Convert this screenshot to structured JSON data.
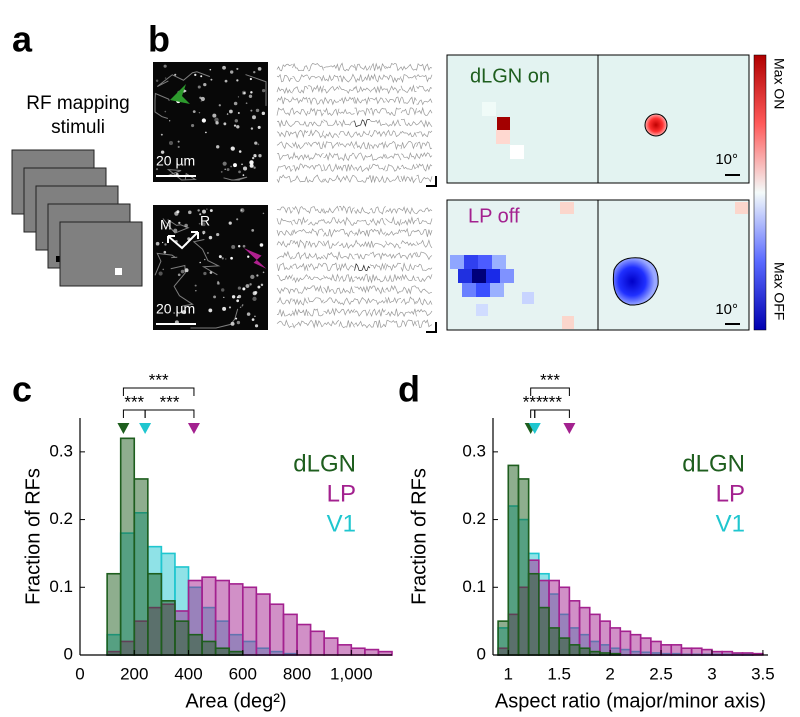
{
  "panel_labels": [
    "a",
    "b",
    "c",
    "d"
  ],
  "panel_a": {
    "lines": [
      "RF mapping",
      "stimuli"
    ]
  },
  "panel_b": {
    "image_scale_bars": [
      "20 µm",
      "20 µm"
    ],
    "orientation_labels": [
      "M",
      "R"
    ],
    "map_titles": [
      "dLGN on",
      "LP off"
    ],
    "map_scale_bars": [
      "10°",
      "10°"
    ],
    "colorbar_labels": [
      "Max ON",
      "Max OFF"
    ]
  },
  "chart_data": [
    {
      "type": "histogram",
      "xlabel": "Area (deg²)",
      "ylabel": "Fraction of RFs",
      "bins": [
        0,
        50,
        100,
        150,
        200,
        250,
        300,
        350,
        400,
        450,
        500,
        550,
        600,
        650,
        700,
        750,
        800,
        850,
        900,
        950,
        1000,
        1050,
        1100,
        1150
      ],
      "series": [
        {
          "name": "dLGN",
          "color": "#1e5e1e",
          "median": 160,
          "values": [
            0,
            0,
            0.12,
            0.32,
            0.26,
            0.12,
            0.08,
            0.05,
            0.03,
            0.02,
            0.01,
            0.005,
            0,
            0,
            0,
            0,
            0,
            0,
            0,
            0,
            0,
            0,
            0
          ]
        },
        {
          "name": "LP",
          "color": "#a3218f",
          "median": 420,
          "values": [
            0,
            0,
            0.005,
            0.02,
            0.05,
            0.07,
            0.075,
            0.065,
            0.11,
            0.115,
            0.11,
            0.105,
            0.1,
            0.09,
            0.075,
            0.06,
            0.045,
            0.035,
            0.025,
            0.015,
            0.01,
            0.008,
            0.005
          ]
        },
        {
          "name": "V1",
          "color": "#1fc6cf",
          "median": 240,
          "values": [
            0,
            0,
            0.03,
            0.18,
            0.21,
            0.16,
            0.15,
            0.13,
            0.1,
            0.07,
            0.05,
            0.03,
            0.02,
            0.01,
            0.005,
            0.002,
            0,
            0,
            0,
            0,
            0,
            0,
            0
          ]
        }
      ],
      "xlim": [
        0,
        1150
      ],
      "ylim": [
        0,
        0.35
      ],
      "xticks": [
        0,
        200,
        400,
        600,
        800,
        {
          "value": 1000,
          "label": "1,000"
        }
      ],
      "yticks": [
        0,
        0.1,
        0.2,
        0.3
      ],
      "annotations": [
        "***",
        "***",
        "***"
      ]
    },
    {
      "type": "histogram",
      "xlabel": "Aspect ratio (major/minor axis)",
      "ylabel": "Fraction of RFs",
      "bins": [
        0.9,
        1,
        1.1,
        1.2,
        1.3,
        1.4,
        1.5,
        1.6,
        1.7,
        1.8,
        1.9,
        2,
        2.1,
        2.2,
        2.3,
        2.4,
        2.5,
        2.6,
        2.7,
        2.8,
        2.9,
        3,
        3.1,
        3.2,
        3.3,
        3.4,
        3.5
      ],
      "series": [
        {
          "name": "dLGN",
          "color": "#1e5e1e",
          "median": 1.22,
          "values": [
            0.05,
            0.28,
            0.26,
            0.12,
            0.07,
            0.04,
            0.025,
            0.015,
            0.01,
            0.005,
            0.003,
            0.002,
            0,
            0,
            0,
            0,
            0,
            0,
            0,
            0,
            0,
            0,
            0,
            0,
            0,
            0
          ]
        },
        {
          "name": "LP",
          "color": "#a3218f",
          "median": 1.6,
          "values": [
            0.01,
            0.06,
            0.1,
            0.14,
            0.11,
            0.11,
            0.1,
            0.08,
            0.07,
            0.06,
            0.05,
            0.04,
            0.035,
            0.03,
            0.025,
            0.02,
            0.015,
            0.015,
            0.01,
            0.01,
            0.008,
            0.005,
            0.005,
            0.003,
            0.003,
            0.002
          ]
        },
        {
          "name": "V1",
          "color": "#1fc6cf",
          "median": 1.26,
          "values": [
            0.04,
            0.22,
            0.2,
            0.15,
            0.12,
            0.09,
            0.06,
            0.04,
            0.03,
            0.02,
            0.015,
            0.01,
            0.008,
            0.005,
            0.004,
            0.003,
            0.002,
            0.002,
            0.001,
            0.001,
            0.001,
            0.001,
            0.001,
            0.001,
            0.001,
            0
          ]
        }
      ],
      "xlim": [
        0.85,
        3.55
      ],
      "ylim": [
        0,
        0.35
      ],
      "xticks": [
        1,
        1.5,
        2,
        2.5,
        3,
        3.5
      ],
      "yticks": [
        0,
        0.1,
        0.2,
        0.3
      ],
      "annotations": [
        "***",
        "***",
        "***"
      ]
    }
  ]
}
